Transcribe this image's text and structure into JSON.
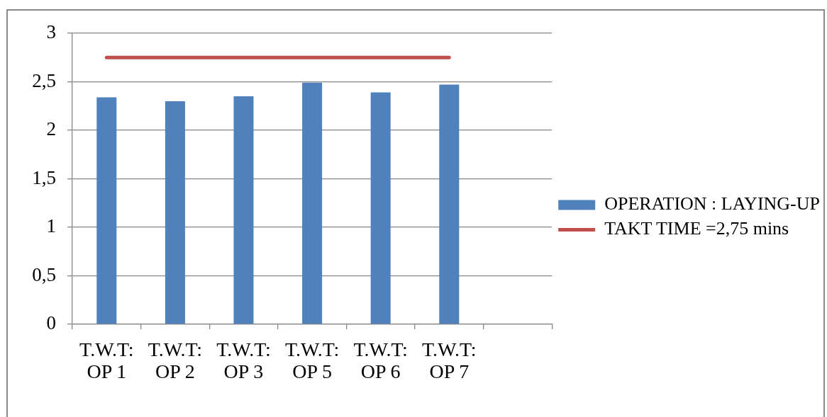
{
  "chart_data": {
    "type": "bar",
    "categories": [
      "T.W.T: OP 1",
      "T.W.T: OP 2",
      "T.W.T: OP 3",
      "T.W.T: OP 5",
      "T.W.T: OP 6",
      "T.W.T: OP 7",
      null
    ],
    "series": [
      {
        "name": "OPERATION : LAYING-UP",
        "color": "#4f81bd",
        "values": [
          2.34,
          2.3,
          2.35,
          2.49,
          2.39,
          2.47,
          null
        ]
      },
      {
        "name": "TAKT TIME =2,75 mins",
        "type": "line",
        "color": "#c0504d",
        "marker": "none",
        "values": [
          2.75,
          2.75,
          2.75,
          2.75,
          2.75,
          2.75,
          null
        ]
      }
    ],
    "ylim": [
      0,
      3
    ],
    "yticks": [
      0,
      {
        "value": 0.5,
        "label": "0,5"
      },
      1,
      {
        "value": 1.5,
        "label": "1,5"
      },
      2,
      {
        "value": 2.5,
        "label": "2,5"
      },
      3
    ],
    "grid": "y",
    "legend": "right"
  }
}
